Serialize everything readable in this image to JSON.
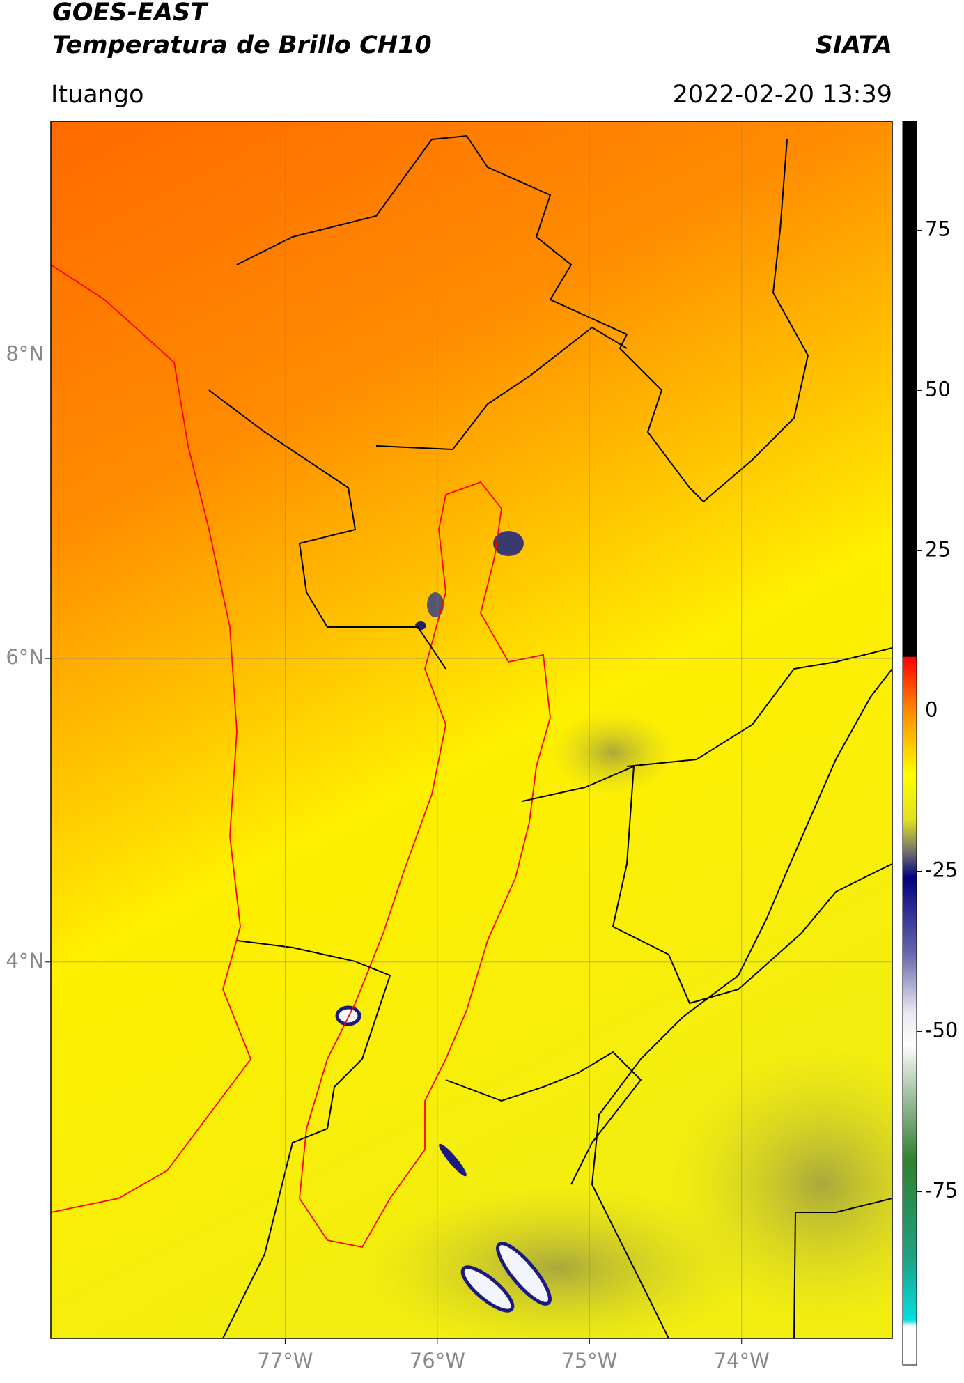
{
  "header": {
    "title": "GOES-EAST",
    "subtitle": "Temperatura de Brillo CH10",
    "source": "SIATA",
    "location": "Ituango",
    "datetime": "2022-02-20 13:39"
  },
  "map": {
    "xlim": [
      -78.54,
      -73.01
    ],
    "ylim": [
      1.52,
      9.54
    ],
    "xticks": [
      {
        "value": -77,
        "label": "77°W"
      },
      {
        "value": -76,
        "label": "76°W"
      },
      {
        "value": -75,
        "label": "75°W"
      },
      {
        "value": -74,
        "label": "74°W"
      }
    ],
    "yticks": [
      {
        "value": 8,
        "label": "8°N"
      },
      {
        "value": 6,
        "label": "6°N"
      },
      {
        "value": 4,
        "label": "4°N"
      }
    ],
    "grid": true
  },
  "colorbar": {
    "lim": [
      -102,
      92
    ],
    "ticks": [
      75,
      50,
      25,
      0,
      -25,
      -50,
      -75
    ],
    "stops": [
      {
        "value": 92,
        "color": "#000000"
      },
      {
        "value": 8.5,
        "color": "#000000"
      },
      {
        "value": 8.4,
        "color": "#ff0000"
      },
      {
        "value": 0,
        "color": "#ff8c00"
      },
      {
        "value": -10,
        "color": "#ffff00"
      },
      {
        "value": -17,
        "color": "#e0e020"
      },
      {
        "value": -22,
        "color": "#707070"
      },
      {
        "value": -26,
        "color": "#000080"
      },
      {
        "value": -38,
        "color": "#6a6ab0"
      },
      {
        "value": -47,
        "color": "#e8e8f0"
      },
      {
        "value": -52,
        "color": "#ffffff"
      },
      {
        "value": -60,
        "color": "#a0c0a0"
      },
      {
        "value": -70,
        "color": "#308030"
      },
      {
        "value": -85,
        "color": "#20a080"
      },
      {
        "value": -95,
        "color": "#00e0e0"
      },
      {
        "value": -96,
        "color": "#ffffff"
      },
      {
        "value": -102,
        "color": "#ffffff"
      }
    ]
  }
}
